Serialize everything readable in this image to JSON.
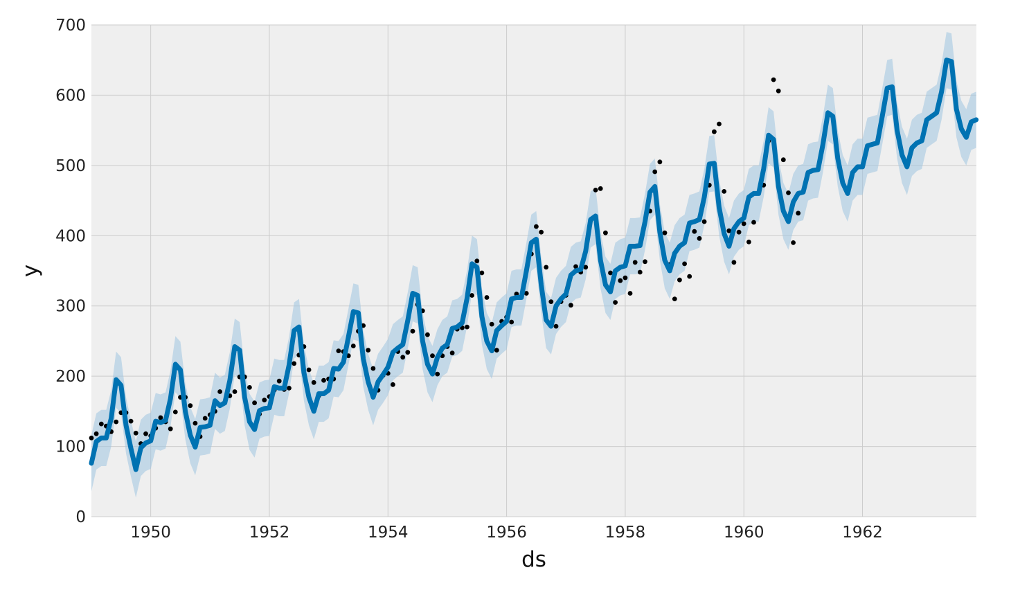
{
  "chart_data": {
    "type": "line",
    "title": "",
    "xlabel": "ds",
    "ylabel": "y",
    "xlim": [
      1949.0,
      1963.92
    ],
    "ylim": [
      0,
      700
    ],
    "x_ticks": [
      1950,
      1952,
      1954,
      1956,
      1958,
      1960,
      1962
    ],
    "x_tick_labels": [
      "1950",
      "1952",
      "1954",
      "1956",
      "1958",
      "1960",
      "1962"
    ],
    "y_ticks": [
      0,
      100,
      200,
      300,
      400,
      500,
      600,
      700
    ],
    "y_tick_labels": [
      "0",
      "100",
      "200",
      "300",
      "400",
      "500",
      "600",
      "700"
    ],
    "grid": true,
    "colors": {
      "background": "#efefef",
      "grid": "#cccccc",
      "forecast": "#0072b2",
      "interval": "#9ec5e0",
      "observed": "#000000"
    },
    "forecast_start": 1949.0,
    "forecast_monthly_yhat": [
      76,
      107,
      112,
      112,
      140,
      195,
      187,
      130,
      97,
      67,
      98,
      105,
      108,
      136,
      134,
      137,
      168,
      217,
      209,
      150,
      116,
      99,
      127,
      128,
      130,
      165,
      158,
      162,
      194,
      242,
      237,
      170,
      135,
      124,
      151,
      154,
      155,
      185,
      183,
      183,
      216,
      265,
      270,
      205,
      170,
      150,
      175,
      175,
      180,
      211,
      210,
      220,
      256,
      292,
      290,
      225,
      192,
      170,
      192,
      202,
      213,
      234,
      240,
      245,
      279,
      318,
      315,
      250,
      217,
      203,
      227,
      240,
      245,
      268,
      270,
      276,
      311,
      360,
      355,
      285,
      250,
      236,
      265,
      272,
      278,
      310,
      312,
      312,
      350,
      390,
      395,
      330,
      280,
      271,
      300,
      310,
      317,
      344,
      350,
      352,
      378,
      423,
      428,
      365,
      330,
      320,
      350,
      355,
      357,
      385,
      385,
      386,
      420,
      462,
      470,
      405,
      365,
      350,
      375,
      385,
      390,
      418,
      420,
      423,
      455,
      502,
      503,
      440,
      403,
      385,
      410,
      420,
      425,
      455,
      460,
      460,
      495,
      543,
      537,
      470,
      435,
      420,
      448,
      460,
      462,
      490,
      493,
      494,
      530,
      575,
      570,
      510,
      475,
      460,
      490,
      498,
      498,
      528,
      530,
      532,
      570,
      610,
      612,
      550,
      515,
      498,
      525,
      532,
      535,
      565,
      570,
      575,
      605,
      650,
      648,
      580,
      552,
      540,
      562,
      565
    ],
    "interval_half_width": 40,
    "observed": {
      "start": 1949.0,
      "values": [
        112,
        118,
        132,
        129,
        121,
        135,
        148,
        148,
        136,
        119,
        104,
        118,
        115,
        126,
        141,
        135,
        125,
        149,
        170,
        170,
        158,
        133,
        114,
        140,
        145,
        150,
        178,
        163,
        172,
        178,
        199,
        199,
        184,
        162,
        146,
        166,
        171,
        180,
        193,
        181,
        183,
        218,
        230,
        242,
        209,
        191,
        172,
        194,
        196,
        196,
        236,
        235,
        229,
        243,
        264,
        272,
        237,
        211,
        180,
        201,
        204,
        188,
        235,
        227,
        234,
        264,
        302,
        293,
        259,
        229,
        203,
        229,
        242,
        233,
        267,
        269,
        270,
        315,
        364,
        347,
        312,
        274,
        237,
        278,
        284,
        277,
        317,
        313,
        318,
        374,
        413,
        405,
        355,
        306,
        271,
        306,
        315,
        301,
        356,
        348,
        355,
        422,
        465,
        467,
        404,
        347,
        305,
        336,
        340,
        318,
        362,
        348,
        363,
        435,
        491,
        505,
        404,
        359,
        310,
        337,
        360,
        342,
        406,
        396,
        420,
        472,
        548,
        559,
        463,
        407,
        362,
        405,
        417,
        391,
        419,
        461,
        472,
        535,
        622,
        606,
        508,
        461,
        390,
        432
      ]
    }
  }
}
